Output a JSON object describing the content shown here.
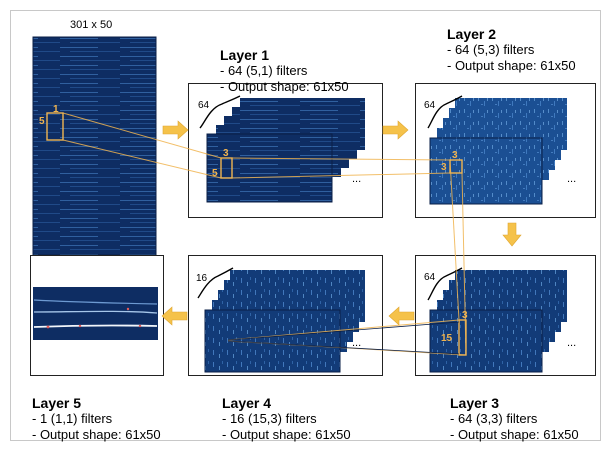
{
  "input_caption": "301 x 50",
  "layers": [
    {
      "title": "Layer 1",
      "filters": "- 64 (5,1) filters",
      "output": "- Output shape: 61x50",
      "count": "64",
      "kernel_w": "3",
      "kernel_h": "5"
    },
    {
      "title": "Layer 2",
      "filters": "- 64 (5,3) filters",
      "output": "- Output shape: 61x50",
      "count": "64",
      "kernel_w": "3",
      "kernel_h": "3"
    },
    {
      "title": "Layer 3",
      "filters": "- 64 (3,3) filters",
      "output": "- Output shape: 61x50",
      "count": "64",
      "kernel_w": "3",
      "kernel_h": "15"
    },
    {
      "title": "Layer 4",
      "filters": "- 16 (15,3) filters",
      "output": "- Output shape: 61x50",
      "count": "16"
    },
    {
      "title": "Layer 5",
      "filters": "- 1 (1,1) filters",
      "output": "- Output shape: 61x50"
    }
  ],
  "input_kernel": {
    "w": "1",
    "h": "5"
  },
  "ellipsis": "...",
  "colors": {
    "feature_dark": "#0d2a5e",
    "feature_mid": "#1a4d8c",
    "accent": "#f0b450",
    "arrow": "#f5c24a"
  }
}
